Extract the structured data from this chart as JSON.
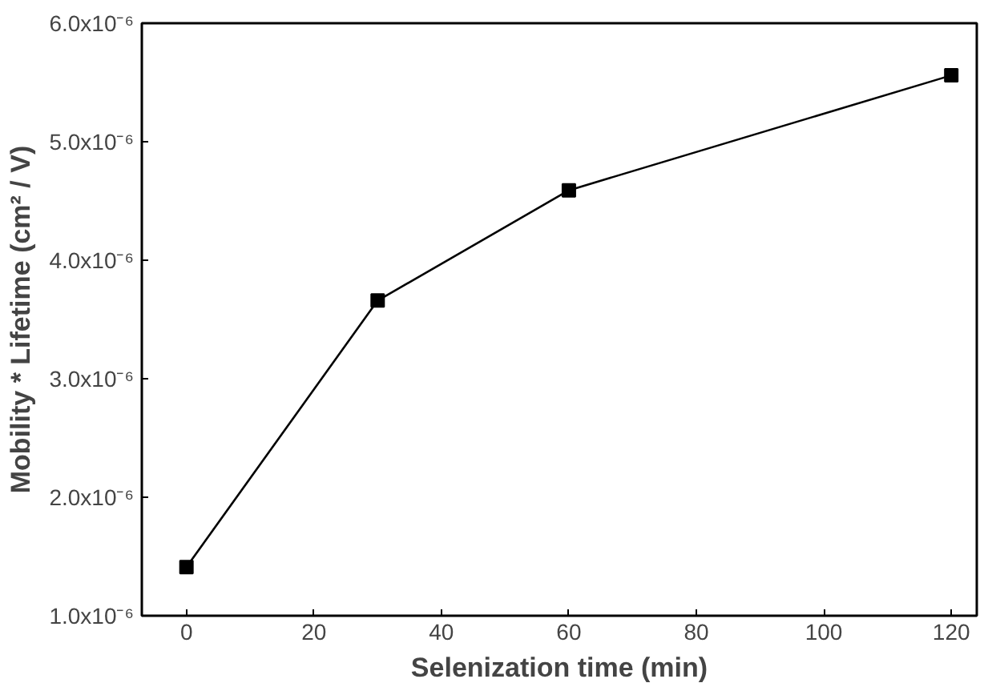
{
  "chart_data": {
    "type": "line",
    "xlabel": "Selenization time (min)",
    "ylabel": "Mobility * Lifetime (cm² / V)",
    "x": [
      0,
      30,
      60,
      120
    ],
    "series": [
      {
        "color": "#000000",
        "values": [
          1.41e-06,
          3.66e-06,
          4.59e-06,
          5.56e-06
        ]
      }
    ],
    "marker": "square",
    "line_style": "solid",
    "grid": false,
    "xlim": [
      -7,
      124
    ],
    "xticks": [
      0,
      20,
      40,
      60,
      80,
      100,
      120
    ],
    "ylim": [
      1e-06,
      6e-06
    ],
    "yticks": [
      {
        "value": 1e-06,
        "label": "1.0x10⁻⁶"
      },
      {
        "value": 2e-06,
        "label": "2.0x10⁻⁶"
      },
      {
        "value": 3e-06,
        "label": "3.0x10⁻⁶"
      },
      {
        "value": 4e-06,
        "label": "4.0x10⁻⁶"
      },
      {
        "value": 5e-06,
        "label": "5.0x10⁻⁶"
      },
      {
        "value": 6e-06,
        "label": "6.0x10⁻⁶"
      }
    ]
  }
}
